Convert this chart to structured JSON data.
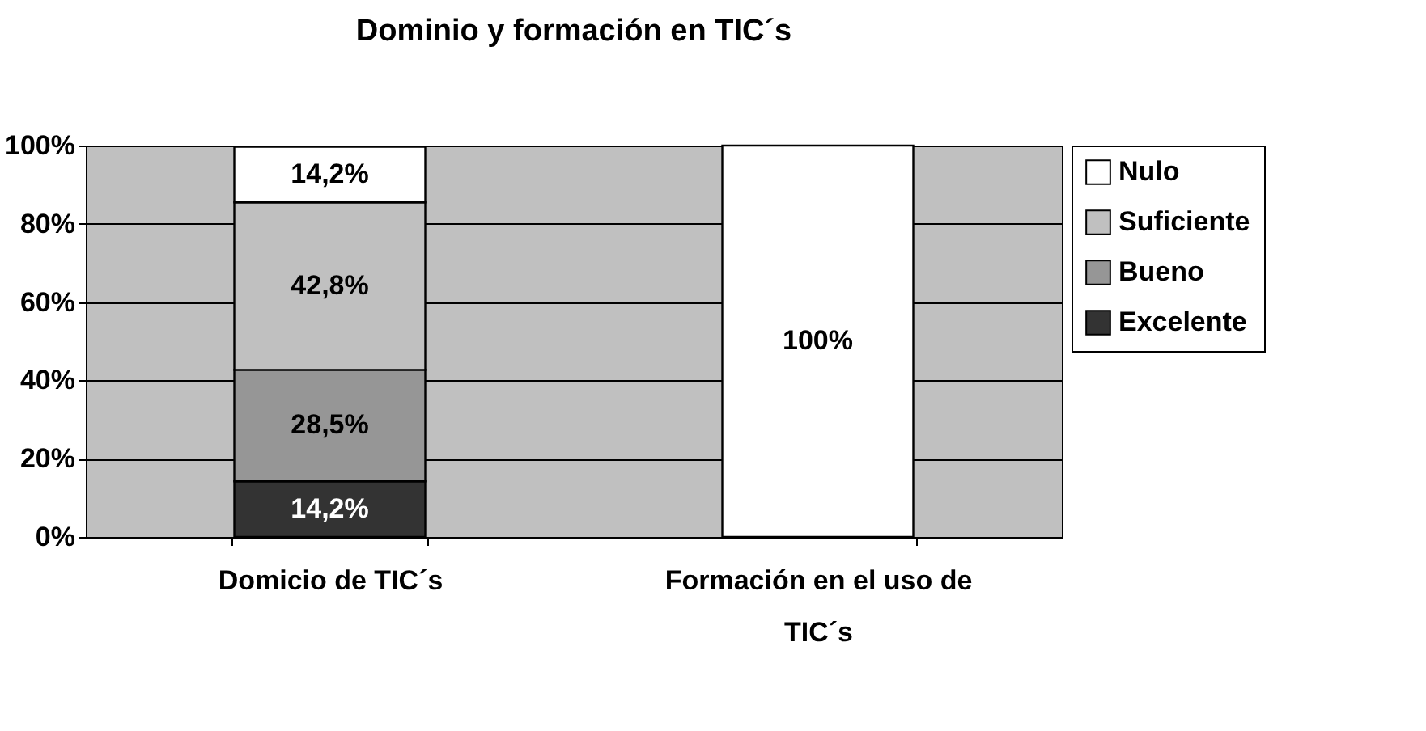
{
  "chart_data": {
    "type": "bar",
    "title": "Dominio y formación en TIC´s",
    "categories": [
      "Domicio de TIC´s",
      "Formación en el uso de TIC´s"
    ],
    "stacked": true,
    "series": [
      {
        "name": "Excelente",
        "color": "#333333",
        "values": [
          14.2,
          null
        ],
        "value_labels": [
          "14,2%",
          null
        ]
      },
      {
        "name": "Bueno",
        "color": "#969696",
        "values": [
          28.5,
          null
        ],
        "value_labels": [
          "28,5%",
          null
        ]
      },
      {
        "name": "Suficiente",
        "color": "#c0c0c0",
        "values": [
          42.8,
          null
        ],
        "value_labels": [
          "42,8%",
          null
        ]
      },
      {
        "name": "Nulo",
        "color": "#ffffff",
        "values": [
          14.2,
          100
        ],
        "value_labels": [
          "14,2%",
          "100%"
        ]
      }
    ],
    "ylim": [
      0,
      100
    ],
    "yticks": [
      {
        "value": 0,
        "label": "0%"
      },
      {
        "value": 20,
        "label": "20%"
      },
      {
        "value": 40,
        "label": "40%"
      },
      {
        "value": 60,
        "label": "60%"
      },
      {
        "value": 80,
        "label": "80%"
      },
      {
        "value": 100,
        "label": "100%"
      }
    ],
    "grid": "y",
    "legend": "right"
  }
}
